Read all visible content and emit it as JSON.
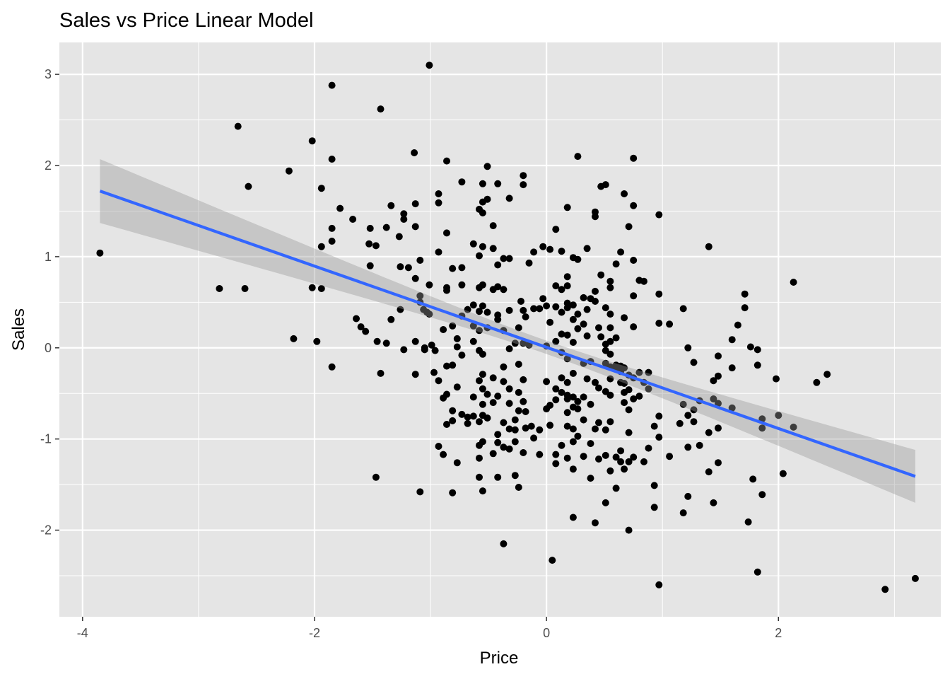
{
  "chart_data": {
    "type": "scatter",
    "title": "Sales vs Price Linear Model",
    "xlabel": "Price",
    "ylabel": "Sales",
    "xlim": [
      -4.2,
      3.4
    ],
    "ylim": [
      -2.95,
      3.35
    ],
    "x_ticks": [
      -4,
      -2,
      0,
      2
    ],
    "x_tick_labels": [
      "-4",
      "-2",
      "0",
      "2"
    ],
    "y_ticks": [
      -2,
      -1,
      0,
      1,
      2,
      3
    ],
    "y_tick_labels": [
      "-2",
      "-1",
      "0",
      "1",
      "2",
      "3"
    ],
    "grid": true,
    "legend": "none",
    "colors": {
      "panel": "#e5e5e5",
      "grid_major": "#ffffff",
      "points": "#000000",
      "fit_line": "#3366ff",
      "ribbon": "#999999"
    },
    "fit": {
      "method": "lm",
      "x_range": [
        -3.85,
        3.18
      ],
      "y_at_start": 1.72,
      "y_at_end": -1.41,
      "band_at_start": [
        1.37,
        2.07
      ],
      "band_at_end": [
        -1.7,
        -1.12
      ]
    },
    "points": [
      [
        -3.85,
        1.04
      ],
      [
        -2.82,
        0.65
      ],
      [
        -2.66,
        2.43
      ],
      [
        -2.6,
        0.65
      ],
      [
        -2.57,
        1.77
      ],
      [
        -2.22,
        1.94
      ],
      [
        -2.18,
        0.1
      ],
      [
        -2.02,
        2.27
      ],
      [
        -2.02,
        0.66
      ],
      [
        -1.98,
        0.07
      ],
      [
        -1.94,
        1.75
      ],
      [
        -1.94,
        0.65
      ],
      [
        -1.94,
        1.11
      ],
      [
        -1.85,
        2.88
      ],
      [
        -1.85,
        2.07
      ],
      [
        -1.85,
        1.31
      ],
      [
        -1.85,
        1.17
      ],
      [
        -1.85,
        -0.21
      ],
      [
        -1.78,
        1.53
      ],
      [
        -1.67,
        1.41
      ],
      [
        -1.64,
        0.32
      ],
      [
        -1.6,
        0.23
      ],
      [
        -1.56,
        0.18
      ],
      [
        -1.53,
        1.14
      ],
      [
        -1.52,
        1.31
      ],
      [
        -1.52,
        0.9
      ],
      [
        -1.47,
        1.12
      ],
      [
        -1.47,
        -1.42
      ],
      [
        -1.46,
        0.07
      ],
      [
        -1.43,
        2.62
      ],
      [
        -1.43,
        -0.28
      ],
      [
        -1.38,
        1.32
      ],
      [
        -1.38,
        0.05
      ],
      [
        -1.34,
        1.56
      ],
      [
        -1.34,
        0.31
      ],
      [
        -1.27,
        1.22
      ],
      [
        -1.26,
        0.89
      ],
      [
        -1.26,
        0.42
      ],
      [
        -1.23,
        1.47
      ],
      [
        -1.23,
        1.41
      ],
      [
        -1.23,
        -0.02
      ],
      [
        -1.19,
        0.88
      ],
      [
        -1.14,
        2.14
      ],
      [
        -1.13,
        1.58
      ],
      [
        -1.13,
        1.33
      ],
      [
        -1.13,
        0.76
      ],
      [
        -1.13,
        0.07
      ],
      [
        -1.13,
        -0.29
      ],
      [
        -1.09,
        0.96
      ],
      [
        -1.09,
        0.57
      ],
      [
        -1.09,
        0.5
      ],
      [
        -1.09,
        -1.58
      ],
      [
        -1.06,
        0.42
      ],
      [
        -1.05,
        0.0
      ],
      [
        -1.05,
        -0.02
      ],
      [
        -1.03,
        0.39
      ],
      [
        -1.01,
        3.1
      ],
      [
        -1.01,
        0.69
      ],
      [
        -1.01,
        0.37
      ],
      [
        -0.99,
        0.03
      ],
      [
        -0.97,
        -0.27
      ],
      [
        -0.96,
        -0.03
      ],
      [
        -0.93,
        1.69
      ],
      [
        -0.93,
        1.59
      ],
      [
        -0.93,
        1.05
      ],
      [
        -0.93,
        -0.36
      ],
      [
        -0.93,
        -1.08
      ],
      [
        -0.89,
        0.2
      ],
      [
        -0.89,
        -0.55
      ],
      [
        -0.89,
        -1.17
      ],
      [
        -0.86,
        2.05
      ],
      [
        -0.86,
        1.26
      ],
      [
        -0.86,
        0.66
      ],
      [
        -0.86,
        0.63
      ],
      [
        -0.86,
        -0.2
      ],
      [
        -0.86,
        -0.51
      ],
      [
        -0.86,
        -0.84
      ],
      [
        -0.81,
        0.87
      ],
      [
        -0.81,
        0.24
      ],
      [
        -0.81,
        -0.19
      ],
      [
        -0.81,
        -0.69
      ],
      [
        -0.81,
        -0.8
      ],
      [
        -0.81,
        -1.59
      ],
      [
        -0.77,
        0.1
      ],
      [
        -0.77,
        0.01
      ],
      [
        -0.77,
        -0.43
      ],
      [
        -0.77,
        -1.26
      ],
      [
        -0.73,
        1.82
      ],
      [
        -0.73,
        0.88
      ],
      [
        -0.73,
        0.69
      ],
      [
        -0.73,
        0.35
      ],
      [
        -0.73,
        -0.08
      ],
      [
        -0.73,
        -0.73
      ],
      [
        -0.68,
        0.42
      ],
      [
        -0.68,
        -0.76
      ],
      [
        -0.68,
        -0.83
      ],
      [
        -0.63,
        1.14
      ],
      [
        -0.63,
        0.47
      ],
      [
        -0.63,
        0.24
      ],
      [
        -0.63,
        0.07
      ],
      [
        -0.63,
        -0.54
      ],
      [
        -0.63,
        -0.75
      ],
      [
        -0.58,
        1.52
      ],
      [
        -0.58,
        1.01
      ],
      [
        -0.58,
        0.66
      ],
      [
        -0.58,
        0.4
      ],
      [
        -0.58,
        0.19
      ],
      [
        -0.58,
        -0.03
      ],
      [
        -0.58,
        -0.36
      ],
      [
        -0.58,
        -0.81
      ],
      [
        -0.58,
        -1.07
      ],
      [
        -0.58,
        -1.21
      ],
      [
        -0.58,
        -1.42
      ],
      [
        -0.55,
        1.8
      ],
      [
        -0.55,
        1.6
      ],
      [
        -0.55,
        1.48
      ],
      [
        -0.55,
        1.11
      ],
      [
        -0.55,
        0.69
      ],
      [
        -0.55,
        0.46
      ],
      [
        -0.55,
        -0.07
      ],
      [
        -0.55,
        -0.29
      ],
      [
        -0.55,
        -0.45
      ],
      [
        -0.55,
        -0.62
      ],
      [
        -0.55,
        -0.74
      ],
      [
        -0.55,
        -1.03
      ],
      [
        -0.55,
        -1.57
      ],
      [
        -0.51,
        1.99
      ],
      [
        -0.51,
        1.63
      ],
      [
        -0.51,
        0.39
      ],
      [
        -0.51,
        0.22
      ],
      [
        -0.51,
        -0.51
      ],
      [
        -0.51,
        -0.77
      ],
      [
        -0.46,
        1.34
      ],
      [
        -0.46,
        1.09
      ],
      [
        -0.46,
        0.64
      ],
      [
        -0.46,
        -0.33
      ],
      [
        -0.46,
        -0.6
      ],
      [
        -0.46,
        -1.16
      ],
      [
        -0.42,
        1.8
      ],
      [
        -0.42,
        0.91
      ],
      [
        -0.42,
        0.67
      ],
      [
        -0.42,
        0.36
      ],
      [
        -0.42,
        0.31
      ],
      [
        -0.42,
        -0.53
      ],
      [
        -0.42,
        -0.95
      ],
      [
        -0.42,
        -1.04
      ],
      [
        -0.42,
        -1.42
      ],
      [
        -0.37,
        0.98
      ],
      [
        -0.37,
        0.64
      ],
      [
        -0.37,
        0.19
      ],
      [
        -0.37,
        -0.21
      ],
      [
        -0.37,
        -0.37
      ],
      [
        -0.37,
        -0.82
      ],
      [
        -0.37,
        -1.09
      ],
      [
        -0.37,
        -2.15
      ],
      [
        -0.32,
        1.64
      ],
      [
        -0.32,
        0.98
      ],
      [
        -0.32,
        0.41
      ],
      [
        -0.32,
        -0.01
      ],
      [
        -0.32,
        -0.45
      ],
      [
        -0.32,
        -0.61
      ],
      [
        -0.32,
        -0.89
      ],
      [
        -0.32,
        -1.11
      ],
      [
        -0.27,
        0.05
      ],
      [
        -0.27,
        -0.79
      ],
      [
        -0.27,
        -0.9
      ],
      [
        -0.27,
        -1.03
      ],
      [
        -0.27,
        -1.4
      ],
      [
        -0.24,
        0.22
      ],
      [
        -0.24,
        -0.18
      ],
      [
        -0.24,
        -0.49
      ],
      [
        -0.24,
        -0.69
      ],
      [
        -0.24,
        -1.53
      ],
      [
        -0.22,
        0.51
      ],
      [
        -0.2,
        1.89
      ],
      [
        -0.2,
        1.79
      ],
      [
        -0.2,
        0.41
      ],
      [
        -0.2,
        0.05
      ],
      [
        -0.2,
        -0.35
      ],
      [
        -0.2,
        -0.59
      ],
      [
        -0.2,
        -1.15
      ],
      [
        -0.18,
        0.34
      ],
      [
        -0.18,
        -0.7
      ],
      [
        -0.18,
        -0.88
      ],
      [
        -0.15,
        0.93
      ],
      [
        -0.15,
        0.03
      ],
      [
        -0.13,
        -0.86
      ],
      [
        -0.11,
        1.05
      ],
      [
        -0.11,
        0.43
      ],
      [
        -0.11,
        -0.99
      ],
      [
        -0.06,
        0.43
      ],
      [
        -0.06,
        -0.9
      ],
      [
        -0.06,
        -1.17
      ],
      [
        -0.03,
        0.54
      ],
      [
        -0.03,
        1.11
      ],
      [
        0.0,
        0.46
      ],
      [
        0.0,
        0.02
      ],
      [
        0.0,
        -0.37
      ],
      [
        0.0,
        -0.67
      ],
      [
        0.03,
        1.08
      ],
      [
        0.03,
        0.28
      ],
      [
        0.03,
        -0.63
      ],
      [
        0.03,
        -0.85
      ],
      [
        0.05,
        -2.33
      ],
      [
        0.08,
        1.3
      ],
      [
        0.08,
        0.68
      ],
      [
        0.08,
        0.45
      ],
      [
        0.08,
        0.07
      ],
      [
        0.08,
        -0.45
      ],
      [
        0.08,
        -0.57
      ],
      [
        0.08,
        -1.17
      ],
      [
        0.08,
        -1.27
      ],
      [
        0.13,
        1.06
      ],
      [
        0.13,
        0.64
      ],
      [
        0.13,
        0.39
      ],
      [
        0.13,
        0.15
      ],
      [
        0.13,
        -0.05
      ],
      [
        0.13,
        -0.33
      ],
      [
        0.13,
        -0.49
      ],
      [
        0.13,
        -1.07
      ],
      [
        0.18,
        1.54
      ],
      [
        0.18,
        0.78
      ],
      [
        0.18,
        0.68
      ],
      [
        0.18,
        0.49
      ],
      [
        0.18,
        0.44
      ],
      [
        0.18,
        0.14
      ],
      [
        0.18,
        -0.12
      ],
      [
        0.18,
        -0.38
      ],
      [
        0.18,
        -0.52
      ],
      [
        0.18,
        -0.56
      ],
      [
        0.18,
        -0.71
      ],
      [
        0.18,
        -0.86
      ],
      [
        0.18,
        -1.21
      ],
      [
        0.23,
        0.99
      ],
      [
        0.23,
        0.47
      ],
      [
        0.23,
        0.31
      ],
      [
        0.23,
        0.06
      ],
      [
        0.23,
        -0.28
      ],
      [
        0.23,
        -0.54
      ],
      [
        0.23,
        -0.65
      ],
      [
        0.23,
        -0.89
      ],
      [
        0.23,
        -1.03
      ],
      [
        0.23,
        -1.33
      ],
      [
        0.23,
        -1.86
      ],
      [
        0.27,
        2.1
      ],
      [
        0.27,
        0.97
      ],
      [
        0.27,
        0.37
      ],
      [
        0.27,
        0.21
      ],
      [
        0.27,
        -0.59
      ],
      [
        0.27,
        -0.67
      ],
      [
        0.27,
        -0.97
      ],
      [
        0.32,
        0.55
      ],
      [
        0.32,
        0.26
      ],
      [
        0.32,
        -0.17
      ],
      [
        0.32,
        -0.54
      ],
      [
        0.32,
        -0.79
      ],
      [
        0.32,
        -1.19
      ],
      [
        0.35,
        1.09
      ],
      [
        0.35,
        0.42
      ],
      [
        0.35,
        0.13
      ],
      [
        0.35,
        -0.34
      ],
      [
        0.38,
        0.54
      ],
      [
        0.38,
        -0.15
      ],
      [
        0.38,
        -0.62
      ],
      [
        0.38,
        -1.05
      ],
      [
        0.38,
        -1.43
      ],
      [
        0.42,
        1.49
      ],
      [
        0.42,
        1.44
      ],
      [
        0.42,
        0.62
      ],
      [
        0.42,
        0.51
      ],
      [
        0.42,
        -0.38
      ],
      [
        0.42,
        -0.89
      ],
      [
        0.42,
        -1.92
      ],
      [
        0.45,
        0.22
      ],
      [
        0.45,
        -0.44
      ],
      [
        0.45,
        -0.82
      ],
      [
        0.45,
        -1.22
      ],
      [
        0.47,
        1.77
      ],
      [
        0.47,
        0.8
      ],
      [
        0.47,
        0.12
      ],
      [
        0.51,
        1.79
      ],
      [
        0.51,
        0.44
      ],
      [
        0.51,
        0.04
      ],
      [
        0.51,
        -0.03
      ],
      [
        0.51,
        -0.17
      ],
      [
        0.51,
        -0.48
      ],
      [
        0.51,
        -0.9
      ],
      [
        0.51,
        -1.18
      ],
      [
        0.51,
        -1.7
      ],
      [
        0.55,
        0.73
      ],
      [
        0.55,
        0.66
      ],
      [
        0.55,
        0.37
      ],
      [
        0.55,
        0.22
      ],
      [
        0.55,
        0.07
      ],
      [
        0.55,
        -0.07
      ],
      [
        0.55,
        -0.21
      ],
      [
        0.55,
        -0.34
      ],
      [
        0.55,
        -0.52
      ],
      [
        0.55,
        -0.81
      ],
      [
        0.55,
        -1.35
      ],
      [
        0.6,
        0.92
      ],
      [
        0.6,
        0.11
      ],
      [
        0.6,
        -0.19
      ],
      [
        0.6,
        -0.22
      ],
      [
        0.6,
        -1.2
      ],
      [
        0.6,
        -1.54
      ],
      [
        0.64,
        1.05
      ],
      [
        0.64,
        -0.2
      ],
      [
        0.64,
        -0.26
      ],
      [
        0.64,
        -0.38
      ],
      [
        0.64,
        -1.13
      ],
      [
        0.64,
        -1.25
      ],
      [
        0.67,
        1.69
      ],
      [
        0.67,
        0.33
      ],
      [
        0.67,
        -0.22
      ],
      [
        0.67,
        -0.39
      ],
      [
        0.67,
        -0.49
      ],
      [
        0.67,
        -0.6
      ],
      [
        0.67,
        -1.33
      ],
      [
        0.71,
        1.33
      ],
      [
        0.71,
        -0.3
      ],
      [
        0.71,
        -0.46
      ],
      [
        0.71,
        -0.68
      ],
      [
        0.71,
        -0.93
      ],
      [
        0.71,
        -1.25
      ],
      [
        0.71,
        -2.0
      ],
      [
        0.75,
        2.08
      ],
      [
        0.75,
        1.56
      ],
      [
        0.75,
        0.96
      ],
      [
        0.75,
        0.57
      ],
      [
        0.75,
        0.23
      ],
      [
        0.75,
        -0.33
      ],
      [
        0.75,
        -0.56
      ],
      [
        0.75,
        -1.2
      ],
      [
        0.8,
        0.74
      ],
      [
        0.8,
        -0.27
      ],
      [
        0.8,
        -0.53
      ],
      [
        0.84,
        0.73
      ],
      [
        0.84,
        -0.38
      ],
      [
        0.84,
        -1.25
      ],
      [
        0.88,
        -0.27
      ],
      [
        0.88,
        -0.45
      ],
      [
        0.88,
        -1.1
      ],
      [
        0.93,
        -1.51
      ],
      [
        0.93,
        -1.75
      ],
      [
        0.93,
        -0.86
      ],
      [
        0.97,
        1.46
      ],
      [
        0.97,
        0.59
      ],
      [
        0.97,
        0.27
      ],
      [
        0.97,
        -0.75
      ],
      [
        0.97,
        -0.98
      ],
      [
        0.97,
        -2.6
      ],
      [
        1.06,
        0.26
      ],
      [
        1.06,
        -1.19
      ],
      [
        1.15,
        -0.83
      ],
      [
        1.18,
        0.43
      ],
      [
        1.18,
        -0.62
      ],
      [
        1.18,
        -1.81
      ],
      [
        1.22,
        0.0
      ],
      [
        1.22,
        -0.74
      ],
      [
        1.22,
        -1.09
      ],
      [
        1.22,
        -1.63
      ],
      [
        1.27,
        -0.16
      ],
      [
        1.27,
        -0.68
      ],
      [
        1.27,
        -0.81
      ],
      [
        1.32,
        -0.58
      ],
      [
        1.32,
        -1.07
      ],
      [
        1.4,
        1.11
      ],
      [
        1.4,
        -0.93
      ],
      [
        1.4,
        -1.36
      ],
      [
        1.44,
        -0.36
      ],
      [
        1.44,
        -0.56
      ],
      [
        1.44,
        -1.7
      ],
      [
        1.48,
        -0.09
      ],
      [
        1.48,
        -0.31
      ],
      [
        1.48,
        -0.61
      ],
      [
        1.48,
        -0.88
      ],
      [
        1.48,
        -1.26
      ],
      [
        1.6,
        0.09
      ],
      [
        1.6,
        -0.22
      ],
      [
        1.6,
        -0.66
      ],
      [
        1.65,
        0.25
      ],
      [
        1.71,
        0.59
      ],
      [
        1.71,
        0.44
      ],
      [
        1.74,
        -1.91
      ],
      [
        1.76,
        0.01
      ],
      [
        1.78,
        -1.44
      ],
      [
        1.82,
        -0.02
      ],
      [
        1.82,
        -0.19
      ],
      [
        1.82,
        -2.46
      ],
      [
        1.86,
        -0.78
      ],
      [
        1.86,
        -0.88
      ],
      [
        1.86,
        -1.61
      ],
      [
        1.98,
        -0.34
      ],
      [
        2.0,
        -0.74
      ],
      [
        2.04,
        -1.38
      ],
      [
        2.13,
        0.72
      ],
      [
        2.13,
        -0.87
      ],
      [
        2.33,
        -0.38
      ],
      [
        2.42,
        -0.29
      ],
      [
        2.92,
        -2.65
      ],
      [
        3.18,
        -2.53
      ]
    ]
  }
}
